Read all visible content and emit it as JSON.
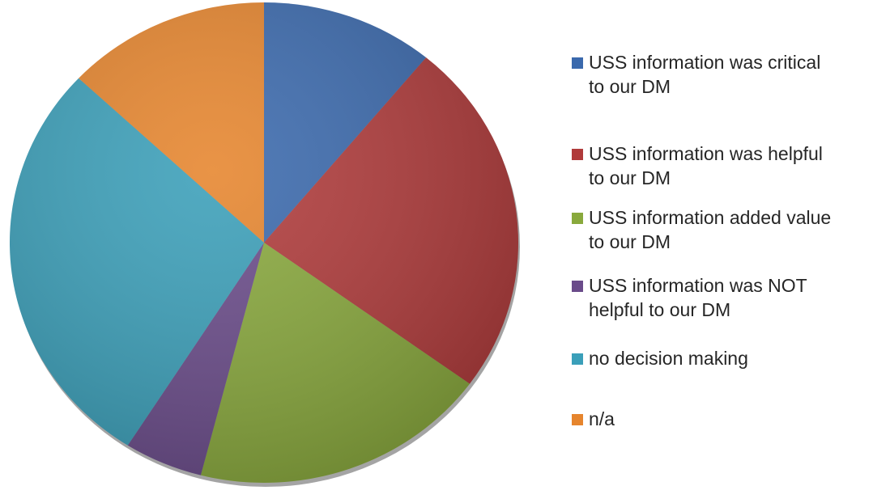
{
  "chart_data": {
    "type": "pie",
    "categories": [
      "USS information was critical to our DM",
      "USS information was helpful to our DM",
      "USS information added value to our DM",
      "USS information was NOT helpful to our DM",
      "no decision making",
      "n/a"
    ],
    "values": [
      11,
      24,
      19,
      5,
      28,
      13
    ],
    "colors": [
      "#3a69ad",
      "#b03a3a",
      "#89a93c",
      "#6a4b8a",
      "#3a9fb9",
      "#e6852d"
    ],
    "legend": "right"
  }
}
